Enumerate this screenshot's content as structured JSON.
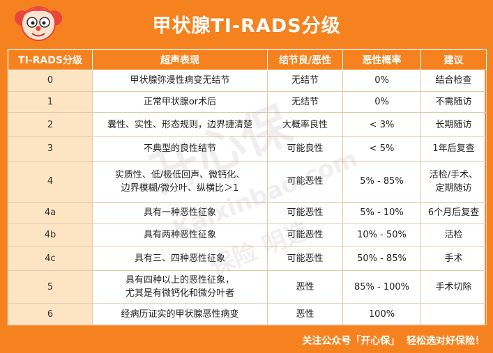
{
  "header": {
    "title": "甲状腺TI-RADS分级",
    "mascot_icon": "cartoon-mascot-face-icon"
  },
  "table": {
    "columns": [
      "TI-RADS分级",
      "超声表现",
      "结节良/恶性",
      "恶性概率",
      "建议"
    ],
    "rows": [
      {
        "level": "0",
        "features": [
          "甲状腺弥漫性病变无结节"
        ],
        "nature": "无结节",
        "probability": "0%",
        "advice": [
          "结合检查"
        ]
      },
      {
        "level": "1",
        "features": [
          "正常甲状腺or术后"
        ],
        "nature": "无结节",
        "probability": "0%",
        "advice": [
          "不需随访"
        ]
      },
      {
        "level": "2",
        "features": [
          "囊性、实性、形态规则，边界捷清楚"
        ],
        "nature": "大概率良性",
        "probability": "< 3%",
        "advice": [
          "长期随访"
        ]
      },
      {
        "level": "3",
        "features": [
          "不典型的良性结节"
        ],
        "nature": "可能良性",
        "probability": "< 5%",
        "advice": [
          "1年后复查"
        ]
      },
      {
        "level": "4",
        "features": [
          "实质性、低/极低回声、微钙化、",
          "边界模糊/微分叶、纵横比＞1"
        ],
        "nature": "可能恶性",
        "probability": "5% - 85%",
        "advice": [
          "活检/手术、",
          "定期随访"
        ]
      },
      {
        "level": "4a",
        "features": [
          "具有一种恶性征象"
        ],
        "nature": "可能恶性",
        "probability": "5% - 10%",
        "advice": [
          "6个月后复查"
        ]
      },
      {
        "level": "4b",
        "features": [
          "具有两种恶性征象"
        ],
        "nature": "可能恶性",
        "probability": "10% - 50%",
        "advice": [
          "活检"
        ]
      },
      {
        "level": "4c",
        "features": [
          "具有三、四种恶性征象"
        ],
        "nature": "可能恶性",
        "probability": "50% - 85%",
        "advice": [
          "手术"
        ]
      },
      {
        "level": "5",
        "features": [
          "具有四种以上的恶性征象，",
          "尤其是有微钙化和微分叶者"
        ],
        "nature": "恶性",
        "probability": "85% - 100%",
        "advice": [
          "手术切除"
        ]
      },
      {
        "level": "6",
        "features": [
          "经病历证实的甲状腺恶性病变"
        ],
        "nature": "恶性",
        "probability": "100%",
        "advice": [
          ""
        ]
      }
    ]
  },
  "watermark": {
    "text": "开心保",
    "url": "Kaixinbao.com",
    "subtext": "保险 明选"
  },
  "footer": {
    "text": "关注公众号「开心保」  轻松选对好保险！"
  },
  "colors": {
    "brand_orange": "#F5821F",
    "level_cell": "#FDE5C4"
  }
}
